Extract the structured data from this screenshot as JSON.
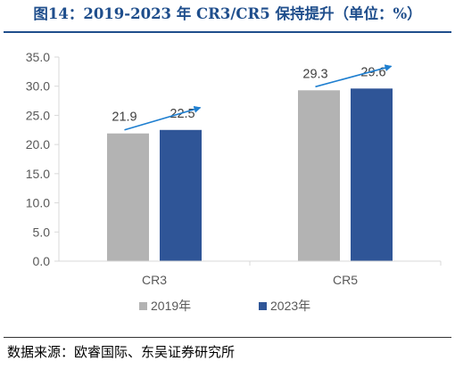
{
  "figure": {
    "title": "图14：2019-2023 年 CR3/CR5 保持提升（单位：%）",
    "source": "数据来源：欧睿国际、东吴证券研究所"
  },
  "colors": {
    "title": "#1f4e8c",
    "series_2019": "#b3b3b3",
    "series_2023": "#2f5597",
    "arrow": "#1f7fd0",
    "axis": "#d9d9d9",
    "text": "#595959"
  },
  "chart_data": {
    "type": "bar",
    "categories": [
      "CR3",
      "CR5"
    ],
    "series": [
      {
        "name": "2019年",
        "values": [
          21.9,
          29.3
        ],
        "labels": [
          "21.9",
          "29.3"
        ]
      },
      {
        "name": "2023年",
        "values": [
          22.5,
          29.6
        ],
        "labels": [
          "22.5",
          "29.6"
        ]
      }
    ],
    "ylim": [
      0,
      35
    ],
    "yticks": [
      "0.0",
      "5.0",
      "10.0",
      "15.0",
      "20.0",
      "25.0",
      "30.0",
      "35.0"
    ],
    "grid": false,
    "legend": "bottom",
    "annotations": [
      "upward arrow from 2019 bar to 2023 bar for each category"
    ]
  }
}
